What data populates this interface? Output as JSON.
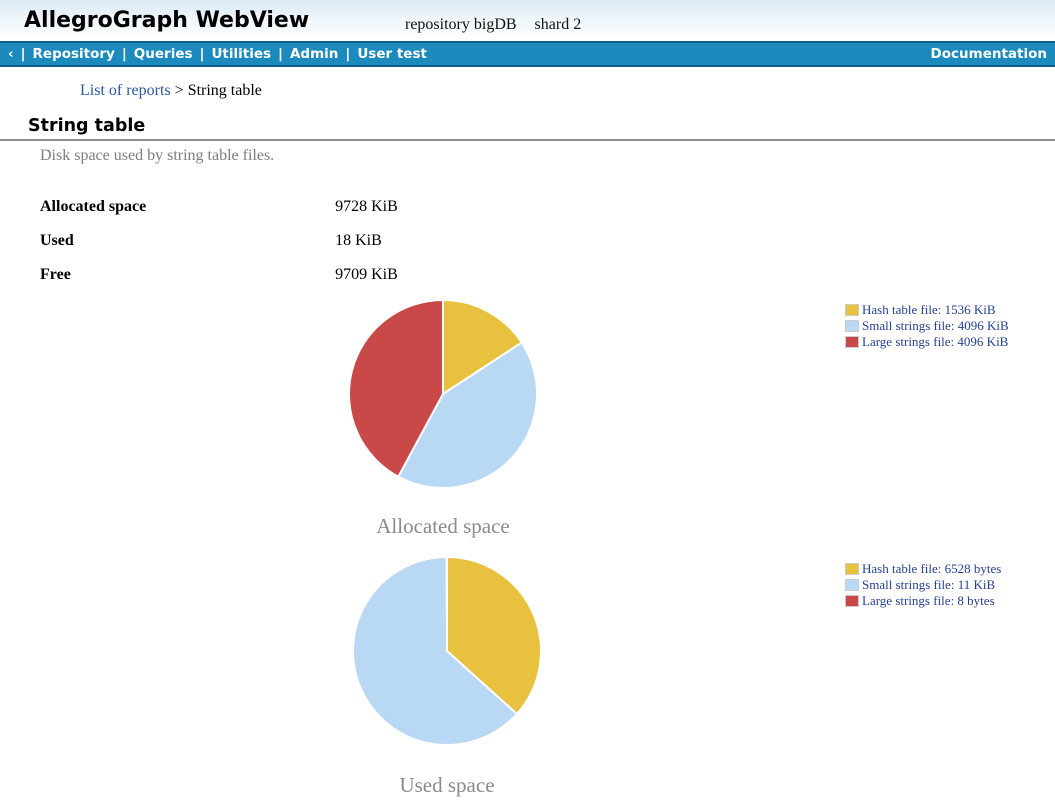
{
  "header": {
    "app_title": "AllegroGraph WebView",
    "repo_text": "repository bigDB",
    "shard_text": "shard 2"
  },
  "nav": {
    "back_chevron": "‹",
    "separator": "|",
    "items": [
      {
        "label": "Repository"
      },
      {
        "label": "Queries"
      },
      {
        "label": "Utilities"
      },
      {
        "label": "Admin"
      },
      {
        "label": "User test"
      }
    ],
    "right_link": "Documentation",
    "bar_color": "#1d8abd"
  },
  "breadcrumb": {
    "link": "List of reports",
    "separator": ">",
    "current": "String table"
  },
  "page": {
    "title": "String table",
    "subtitle": "Disk space used by string table files."
  },
  "summary_table": {
    "rows": [
      {
        "label": "Allocated space",
        "value": "9728 KiB"
      },
      {
        "label": "Used",
        "value": "18 KiB"
      },
      {
        "label": "Free",
        "value": "9709 KiB"
      }
    ]
  },
  "chart_data": [
    {
      "type": "pie",
      "title": "Allocated space",
      "labels": [
        "Hash table file",
        "Small strings file",
        "Large strings file"
      ],
      "values": [
        1536,
        4096,
        4096
      ],
      "unit": "KiB",
      "legend_labels": [
        "Hash table file: 1536 KiB",
        "Small strings file: 4096 KiB",
        "Large strings file: 4096 KiB"
      ],
      "colors": [
        "#e8c23f",
        "#b9d8f3",
        "#c94848"
      ],
      "legend_position": "right",
      "start_angle_deg": 0,
      "direction": "clockwise"
    },
    {
      "type": "pie",
      "title": "Used space",
      "labels": [
        "Hash table file",
        "Small strings file",
        "Large strings file"
      ],
      "values": [
        6528,
        11264,
        8
      ],
      "unit": "bytes",
      "legend_labels": [
        "Hash table file: 6528 bytes",
        "Small strings file: 11 KiB",
        "Large strings file: 8 bytes"
      ],
      "colors": [
        "#e8c23f",
        "#b9d8f3",
        "#c94848"
      ],
      "legend_position": "right",
      "start_angle_deg": 0,
      "direction": "clockwise"
    }
  ]
}
